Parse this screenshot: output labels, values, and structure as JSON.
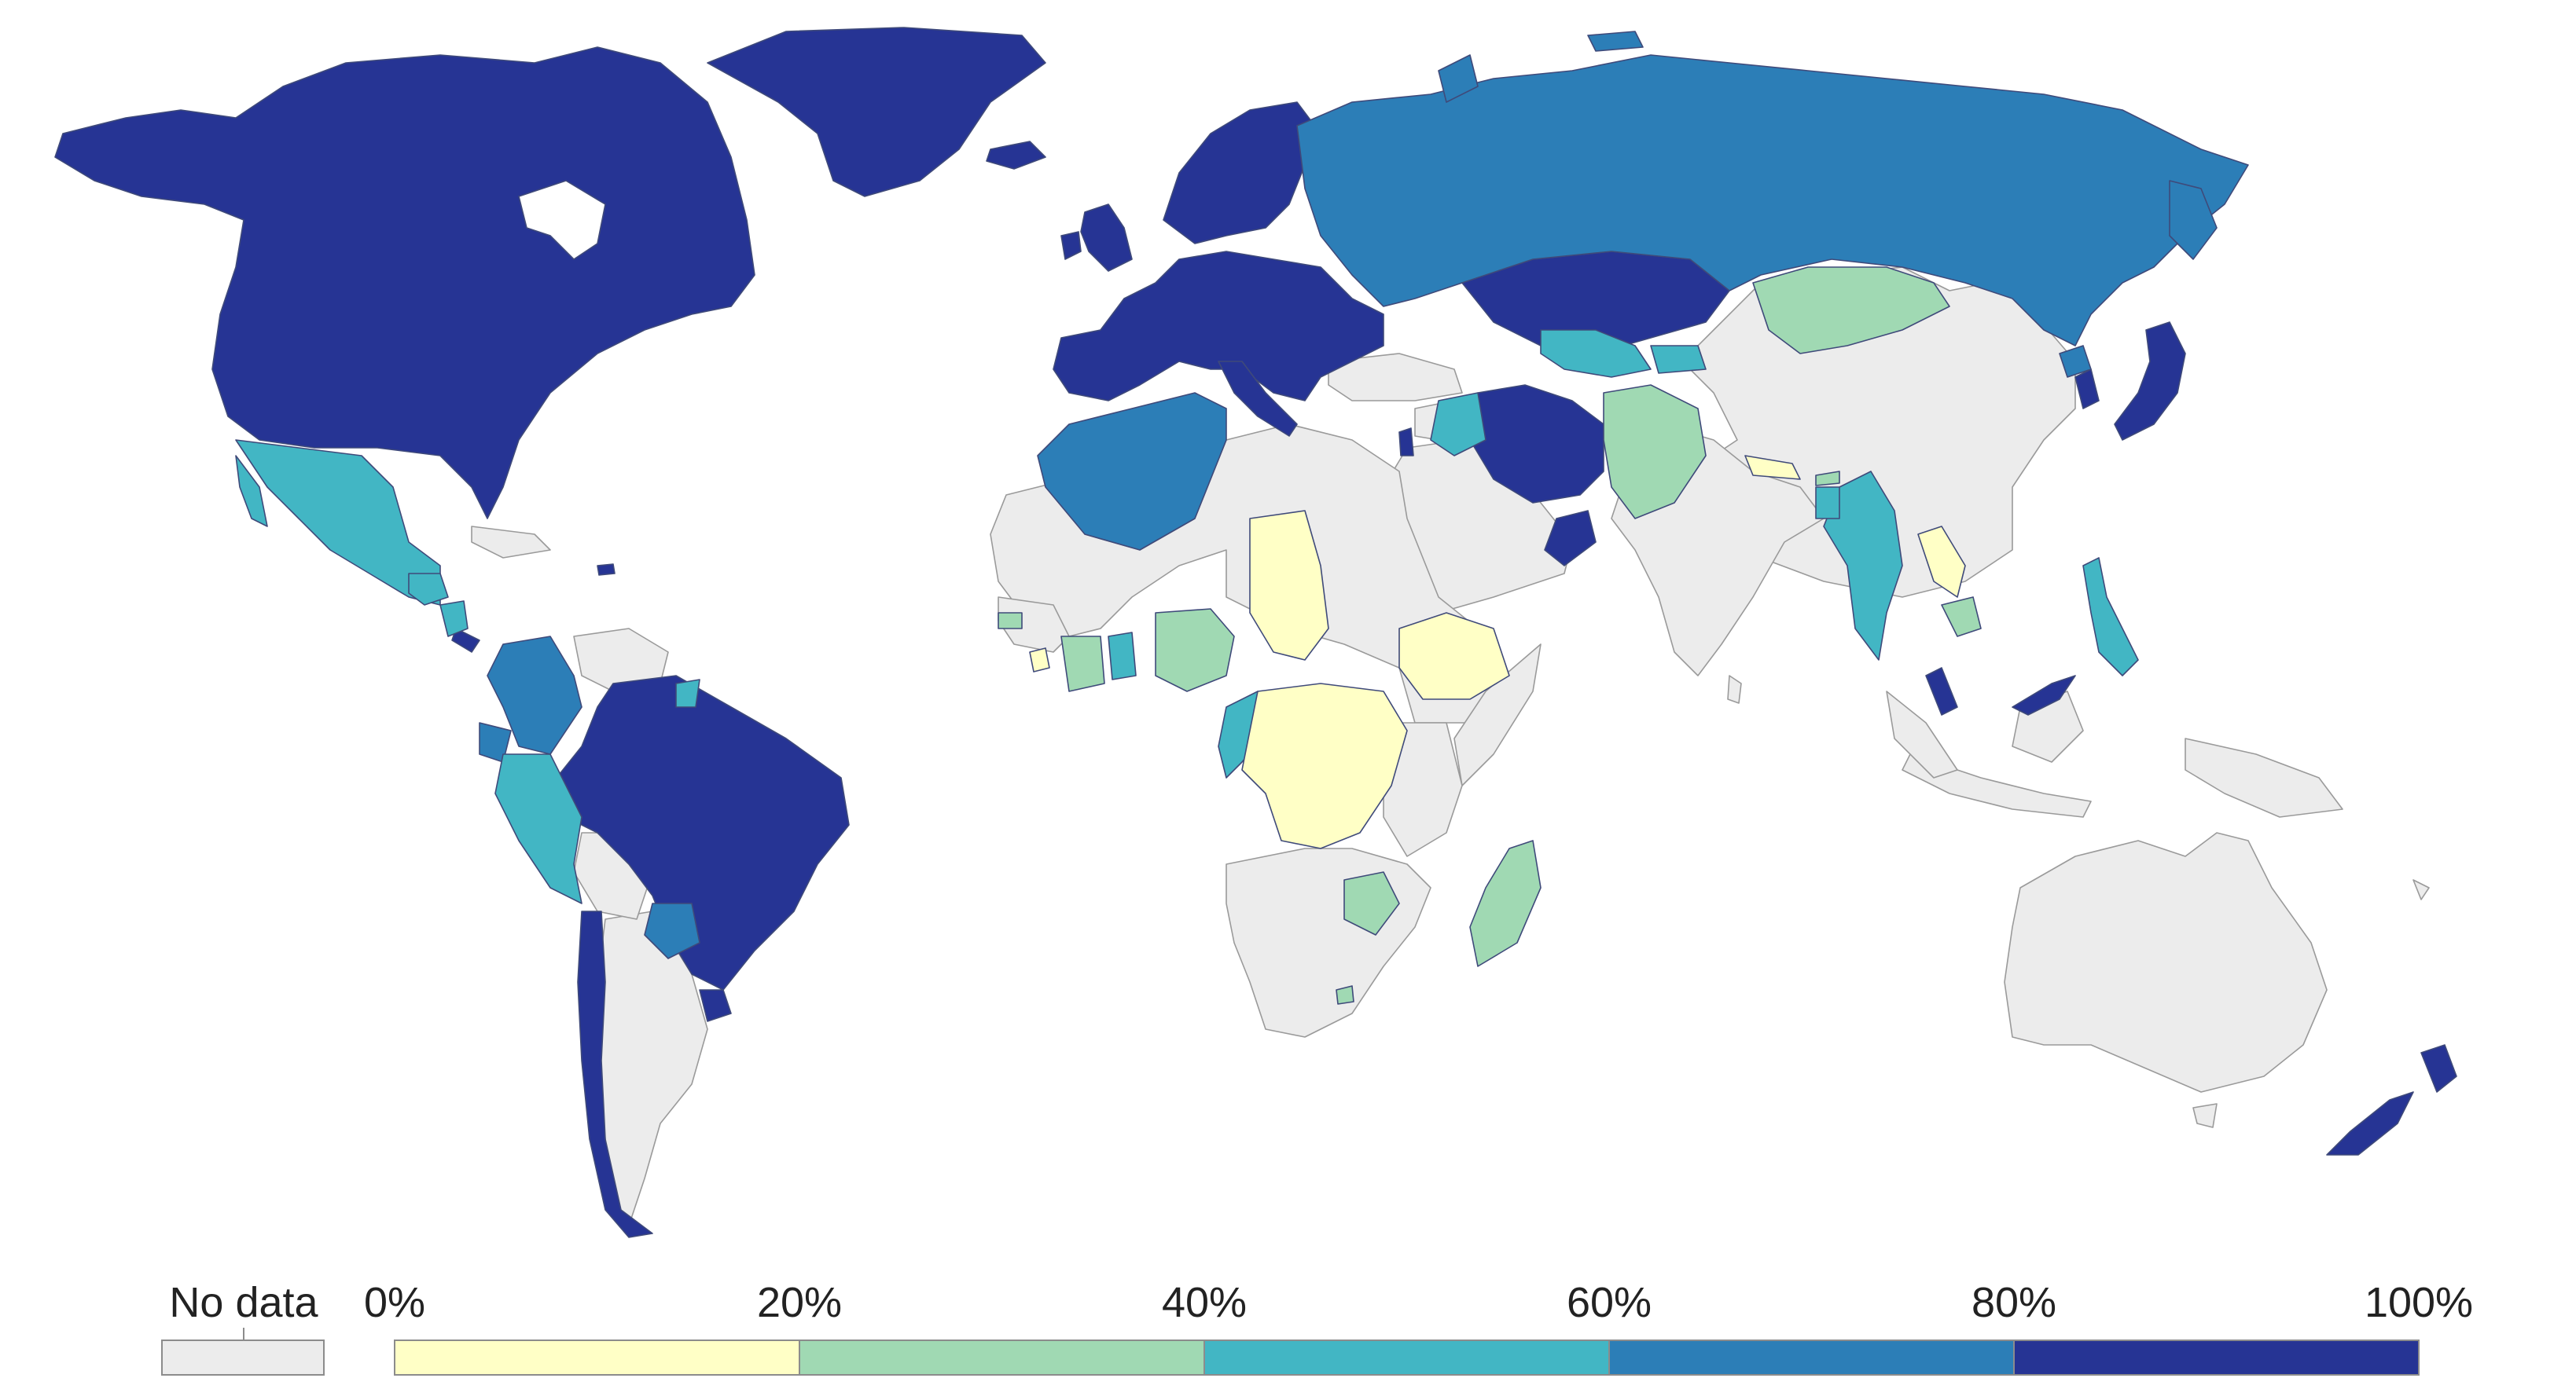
{
  "legend": {
    "no_data_label": "No data",
    "no_data_color": "#ececec",
    "tick_labels": [
      "0%",
      "20%",
      "40%",
      "60%",
      "80%",
      "100%"
    ],
    "bins": [
      {
        "range": "0%-20%",
        "color": "#ffffc6"
      },
      {
        "range": "20%-40%",
        "color": "#a0d9b3"
      },
      {
        "range": "40%-60%",
        "color": "#42b6c4"
      },
      {
        "range": "60%-80%",
        "color": "#2c7eb7"
      },
      {
        "range": "80%-100%",
        "color": "#263494"
      }
    ]
  },
  "colors": {
    "no_data": "#ececec",
    "bin_0_20": "#ffffc6",
    "bin_20_40": "#a0d9b3",
    "bin_40_60": "#42b6c4",
    "bin_60_80": "#2c7eb7",
    "bin_80_100": "#263494",
    "ocean": "#ffffff",
    "border": "#3f4a7a"
  }
}
